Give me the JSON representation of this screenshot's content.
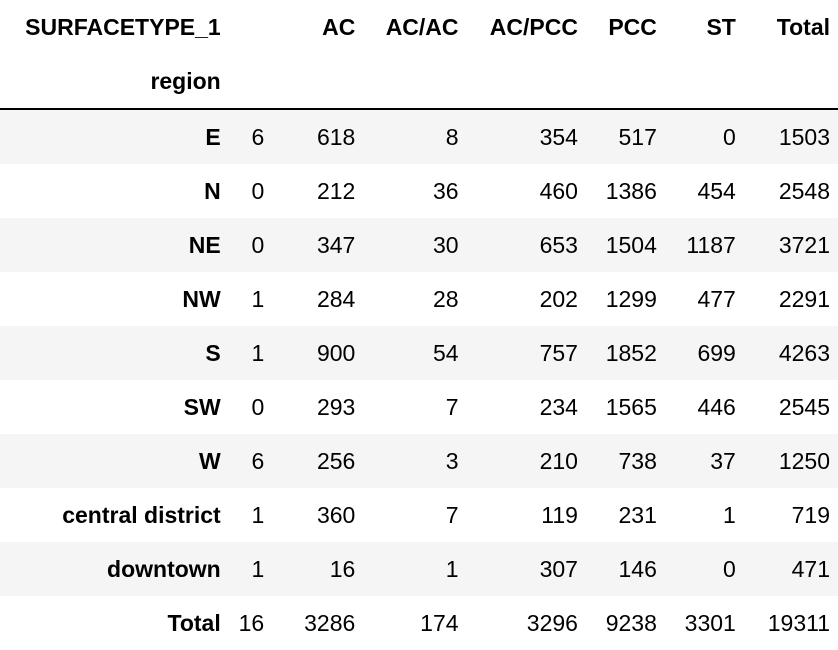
{
  "table": {
    "columns_label": "SURFACETYPE_1",
    "index_label": "region",
    "columns": [
      "",
      "AC",
      "AC/AC",
      "AC/PCC",
      "PCC",
      "ST",
      "Total"
    ],
    "rows": [
      {
        "label": "E",
        "values": [
          "6",
          "618",
          "8",
          "354",
          "517",
          "0",
          "1503"
        ]
      },
      {
        "label": "N",
        "values": [
          "0",
          "212",
          "36",
          "460",
          "1386",
          "454",
          "2548"
        ]
      },
      {
        "label": "NE",
        "values": [
          "0",
          "347",
          "30",
          "653",
          "1504",
          "1187",
          "3721"
        ]
      },
      {
        "label": "NW",
        "values": [
          "1",
          "284",
          "28",
          "202",
          "1299",
          "477",
          "2291"
        ]
      },
      {
        "label": "S",
        "values": [
          "1",
          "900",
          "54",
          "757",
          "1852",
          "699",
          "4263"
        ]
      },
      {
        "label": "SW",
        "values": [
          "0",
          "293",
          "7",
          "234",
          "1565",
          "446",
          "2545"
        ]
      },
      {
        "label": "W",
        "values": [
          "6",
          "256",
          "3",
          "210",
          "738",
          "37",
          "1250"
        ]
      },
      {
        "label": "central district",
        "values": [
          "1",
          "360",
          "7",
          "119",
          "231",
          "1",
          "719"
        ]
      },
      {
        "label": "downtown",
        "values": [
          "1",
          "16",
          "1",
          "307",
          "146",
          "0",
          "471"
        ]
      },
      {
        "label": "Total",
        "values": [
          "16",
          "3286",
          "174",
          "3296",
          "9238",
          "3301",
          "19311"
        ]
      }
    ]
  }
}
